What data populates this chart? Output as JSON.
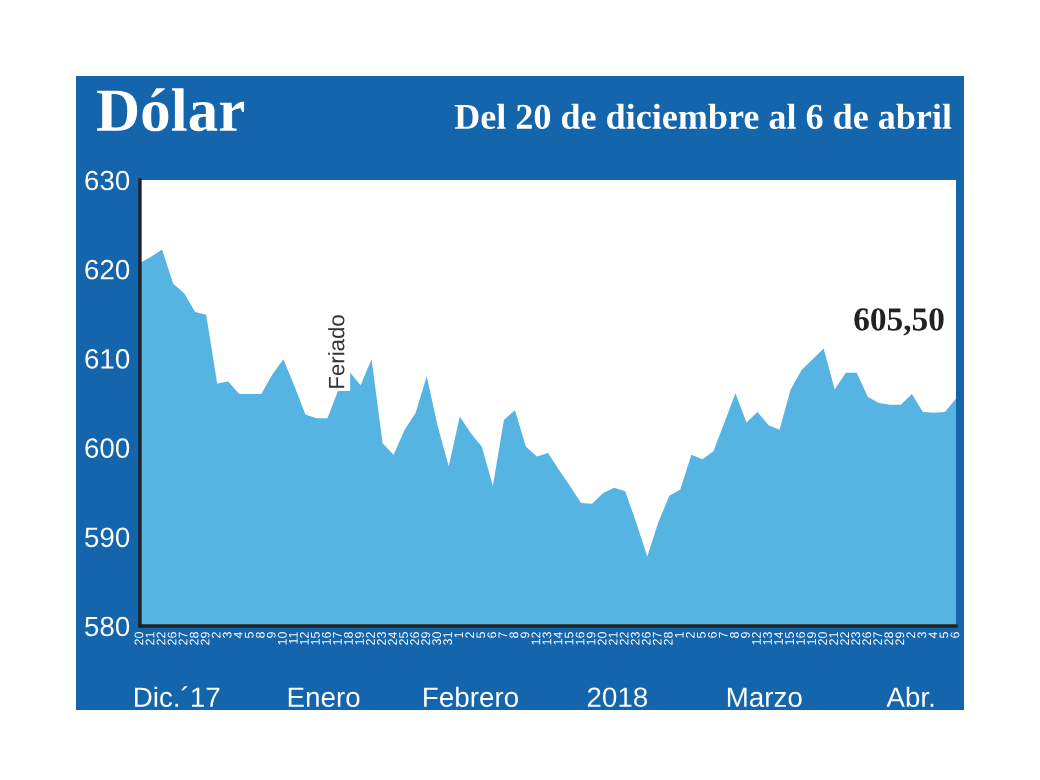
{
  "chart_data": {
    "type": "area",
    "title": "Dólar",
    "subtitle": "Del 20 de diciembre al 6 de abril",
    "categories": [
      "20",
      "21",
      "22",
      "26",
      "27",
      "28",
      "29",
      "2",
      "3",
      "4",
      "5",
      "8",
      "9",
      "10",
      "11",
      "12",
      "15",
      "16",
      "17",
      "18",
      "19",
      "22",
      "23",
      "24",
      "25",
      "26",
      "29",
      "30",
      "31",
      "1",
      "2",
      "5",
      "6",
      "7",
      "8",
      "9",
      "12",
      "13",
      "14",
      "15",
      "16",
      "19",
      "20",
      "21",
      "22",
      "23",
      "26",
      "27",
      "28",
      "1",
      "2",
      "5",
      "6",
      "7",
      "8",
      "9",
      "12",
      "13",
      "14",
      "15",
      "16",
      "19",
      "20",
      "21",
      "22",
      "23",
      "26",
      "27",
      "28",
      "29",
      "2",
      "3",
      "4",
      "5",
      "6"
    ],
    "series": [
      {
        "color": "#55b4e2",
        "values": [
          620.7,
          621.4,
          622.2,
          618.4,
          617.3,
          615.2,
          614.9,
          607.2,
          607.4,
          606.0,
          606.0,
          606.0,
          608.2,
          609.9,
          606.9,
          603.7,
          603.3,
          603.3,
          606.5,
          608.5,
          607.0,
          609.9,
          600.5,
          599.2,
          602.0,
          603.9,
          608.0,
          602.4,
          597.9,
          603.5,
          601.6,
          600.1,
          595.7,
          603.1,
          604.2,
          600.1,
          599.0,
          599.4,
          597.5,
          595.7,
          593.8,
          593.7,
          594.9,
          595.5,
          595.1,
          591.6,
          587.8,
          591.6,
          594.6,
          595.3,
          599.2,
          598.7,
          599.6,
          602.8,
          606.1,
          602.8,
          604.0,
          602.5,
          602.0,
          606.5,
          608.7,
          609.9,
          611.1,
          606.5,
          608.4,
          608.4,
          605.7,
          605.0,
          604.8,
          604.8,
          606.0,
          604.0,
          603.9,
          604.0,
          605.5
        ],
        "value_labels": [
          null,
          null,
          null,
          null,
          null,
          null,
          null,
          null,
          null,
          null,
          null,
          null,
          null,
          null,
          null,
          null,
          null,
          null,
          null,
          null,
          null,
          null,
          null,
          null,
          null,
          null,
          null,
          null,
          null,
          null,
          null,
          null,
          null,
          null,
          null,
          null,
          null,
          null,
          null,
          null,
          null,
          null,
          null,
          null,
          null,
          null,
          null,
          null,
          null,
          null,
          null,
          null,
          null,
          null,
          null,
          null,
          null,
          null,
          null,
          null,
          null,
          null,
          null,
          null,
          null,
          null,
          null,
          null,
          null,
          null,
          null,
          null,
          null,
          null,
          "605,50"
        ]
      }
    ],
    "ylim": [
      580,
      630
    ],
    "yticks": [
      580,
      590,
      600,
      610,
      620,
      630
    ],
    "grid": false,
    "legend": false,
    "annotations": [
      {
        "text": "Feriado",
        "x": "17",
        "y": 606.5
      },
      "Dic.´17",
      "Enero",
      "Febrero",
      "2018",
      "Marzo",
      "Abr."
    ]
  }
}
